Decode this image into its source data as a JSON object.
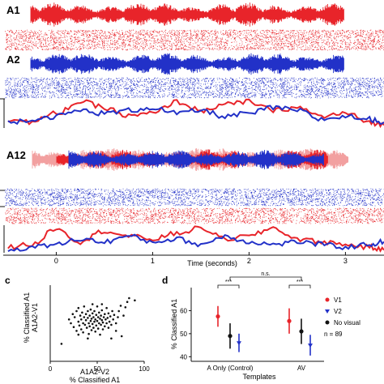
{
  "figure": {
    "labels": {
      "a1": "A1",
      "a2": "A2",
      "a12": "A12",
      "panel_c": "c",
      "panel_d": "d"
    },
    "colors": {
      "red": "#e8242a",
      "blue": "#2231c8",
      "pink": "#f2a0a0",
      "black": "#111111"
    }
  },
  "chart_data": [
    {
      "id": "time_axis",
      "type": "line",
      "xlabel": "Time (seconds)",
      "xlim": [
        -0.55,
        3.4
      ],
      "xticks": [
        0,
        1,
        2,
        3
      ],
      "xtick_labels": [
        "0",
        "1",
        "2",
        "3"
      ]
    },
    {
      "id": "trace_top",
      "type": "line",
      "series": [
        {
          "color": "#e8242a",
          "x": [
            -0.5,
            -0.25,
            0,
            0.25,
            0.5,
            0.75,
            1.0,
            1.25,
            1.5,
            1.75,
            2.0,
            2.25,
            2.5,
            2.75,
            3.0,
            3.25,
            3.4
          ],
          "y": [
            0.3,
            0.2,
            0.5,
            0.9,
            0.7,
            0.4,
            0.5,
            0.9,
            0.6,
            0.8,
            0.9,
            0.6,
            0.7,
            0.4,
            0.5,
            0.2,
            0.1
          ]
        },
        {
          "color": "#2231c8",
          "x": [
            -0.5,
            -0.25,
            0,
            0.25,
            0.5,
            0.75,
            1.0,
            1.25,
            1.5,
            1.75,
            2.0,
            2.25,
            2.5,
            2.75,
            3.0,
            3.25,
            3.4
          ],
          "y": [
            0.2,
            0.3,
            0.4,
            0.6,
            0.5,
            0.6,
            0.7,
            0.5,
            0.6,
            0.4,
            0.5,
            0.7,
            0.6,
            0.3,
            0.4,
            0.3,
            0.2
          ]
        }
      ]
    },
    {
      "id": "trace_bottom",
      "type": "line",
      "series": [
        {
          "color": "#e8242a",
          "x": [
            -0.5,
            -0.25,
            0,
            0.25,
            0.5,
            0.75,
            1.0,
            1.25,
            1.5,
            1.75,
            2.0,
            2.25,
            2.5,
            2.75,
            3.0,
            3.25,
            3.4
          ],
          "y": [
            0.2,
            0.3,
            0.9,
            0.4,
            0.8,
            0.6,
            0.5,
            0.7,
            0.9,
            0.5,
            0.6,
            0.9,
            0.5,
            0.4,
            0.3,
            0.2,
            0.1
          ]
        },
        {
          "color": "#2231c8",
          "x": [
            -0.5,
            -0.25,
            0,
            0.25,
            0.5,
            0.75,
            1.0,
            1.25,
            1.5,
            1.75,
            2.0,
            2.25,
            2.5,
            2.75,
            3.0,
            3.25,
            3.4
          ],
          "y": [
            0.1,
            0.2,
            0.3,
            0.5,
            0.4,
            0.6,
            0.4,
            0.5,
            0.3,
            0.6,
            0.4,
            0.3,
            0.4,
            0.3,
            0.2,
            0.3,
            0.4
          ]
        }
      ]
    },
    {
      "id": "panel_c",
      "type": "scatter",
      "xlabel_line1": "A1A2-V2",
      "xlabel_line2": "% Classified A1",
      "ylabel_line1": "% Classified A1",
      "ylabel_line2": "A1A2-V1",
      "xlim": [
        0,
        100
      ],
      "ylim": [
        0,
        100
      ],
      "xticks": [
        0,
        50,
        100
      ],
      "xtick_labels": [
        "0",
        "50",
        "100"
      ],
      "points": [
        [
          12,
          23
        ],
        [
          20,
          55
        ],
        [
          22,
          50
        ],
        [
          24,
          62
        ],
        [
          25,
          45
        ],
        [
          26,
          58
        ],
        [
          28,
          66
        ],
        [
          28,
          40
        ],
        [
          30,
          52
        ],
        [
          30,
          70
        ],
        [
          31,
          47
        ],
        [
          32,
          60
        ],
        [
          33,
          55
        ],
        [
          33,
          42
        ],
        [
          34,
          64
        ],
        [
          35,
          50
        ],
        [
          35,
          38
        ],
        [
          36,
          58
        ],
        [
          36,
          72
        ],
        [
          37,
          48
        ],
        [
          38,
          54
        ],
        [
          38,
          62
        ],
        [
          39,
          44
        ],
        [
          40,
          57
        ],
        [
          40,
          66
        ],
        [
          41,
          50
        ],
        [
          41,
          36
        ],
        [
          42,
          60
        ],
        [
          42,
          46
        ],
        [
          43,
          53
        ],
        [
          43,
          68
        ],
        [
          44,
          41
        ],
        [
          44,
          56
        ],
        [
          45,
          63
        ],
        [
          45,
          49
        ],
        [
          46,
          58
        ],
        [
          46,
          44
        ],
        [
          47,
          52
        ],
        [
          47,
          66
        ],
        [
          48,
          55
        ],
        [
          48,
          39
        ],
        [
          49,
          61
        ],
        [
          49,
          47
        ],
        [
          50,
          53
        ],
        [
          50,
          72
        ],
        [
          51,
          58
        ],
        [
          51,
          43
        ],
        [
          52,
          50
        ],
        [
          52,
          64
        ],
        [
          53,
          56
        ],
        [
          53,
          35
        ],
        [
          54,
          60
        ],
        [
          54,
          48
        ],
        [
          55,
          54
        ],
        [
          55,
          67
        ],
        [
          56,
          51
        ],
        [
          56,
          42
        ],
        [
          57,
          58
        ],
        [
          58,
          46
        ],
        [
          58,
          62
        ],
        [
          59,
          55
        ],
        [
          60,
          50
        ],
        [
          60,
          70
        ],
        [
          61,
          57
        ],
        [
          62,
          44
        ],
        [
          62,
          63
        ],
        [
          63,
          52
        ],
        [
          64,
          59
        ],
        [
          65,
          48
        ],
        [
          66,
          66
        ],
        [
          67,
          55
        ],
        [
          68,
          61
        ],
        [
          70,
          50
        ],
        [
          72,
          58
        ],
        [
          73,
          66
        ],
        [
          75,
          73
        ],
        [
          78,
          60
        ],
        [
          80,
          71
        ],
        [
          82,
          78
        ],
        [
          76,
          33
        ],
        [
          65,
          30
        ],
        [
          40,
          30
        ],
        [
          30,
          35
        ],
        [
          84,
          83
        ],
        [
          70,
          40
        ],
        [
          55,
          75
        ],
        [
          45,
          75
        ],
        [
          90,
          80
        ]
      ]
    },
    {
      "id": "panel_d",
      "type": "scatter",
      "xlabel": "Templates",
      "ylabel": "% Classified A1",
      "ylim": [
        38,
        70
      ],
      "yticks": [
        40,
        50,
        60
      ],
      "ytick_labels": [
        "40",
        "50",
        "60"
      ],
      "categories": [
        "A Only (Control)",
        "AV"
      ],
      "series": [
        {
          "name": "V1",
          "color": "#e8242a",
          "marker": "circle",
          "values": [
            57.5,
            55.5
          ],
          "err": [
            4.5,
            5.5
          ]
        },
        {
          "name": "No visual",
          "color": "#111111",
          "marker": "circle",
          "values": [
            49.0,
            51.0
          ],
          "err": [
            5.5,
            5.5
          ]
        },
        {
          "name": "V2",
          "color": "#2231c8",
          "marker": "triangle",
          "values": [
            46.0,
            45.0
          ],
          "err": [
            4.0,
            4.5
          ]
        }
      ],
      "annotations": {
        "sig_within": "***",
        "sig_between": "n.s.",
        "n_label": "n = 89"
      }
    }
  ]
}
